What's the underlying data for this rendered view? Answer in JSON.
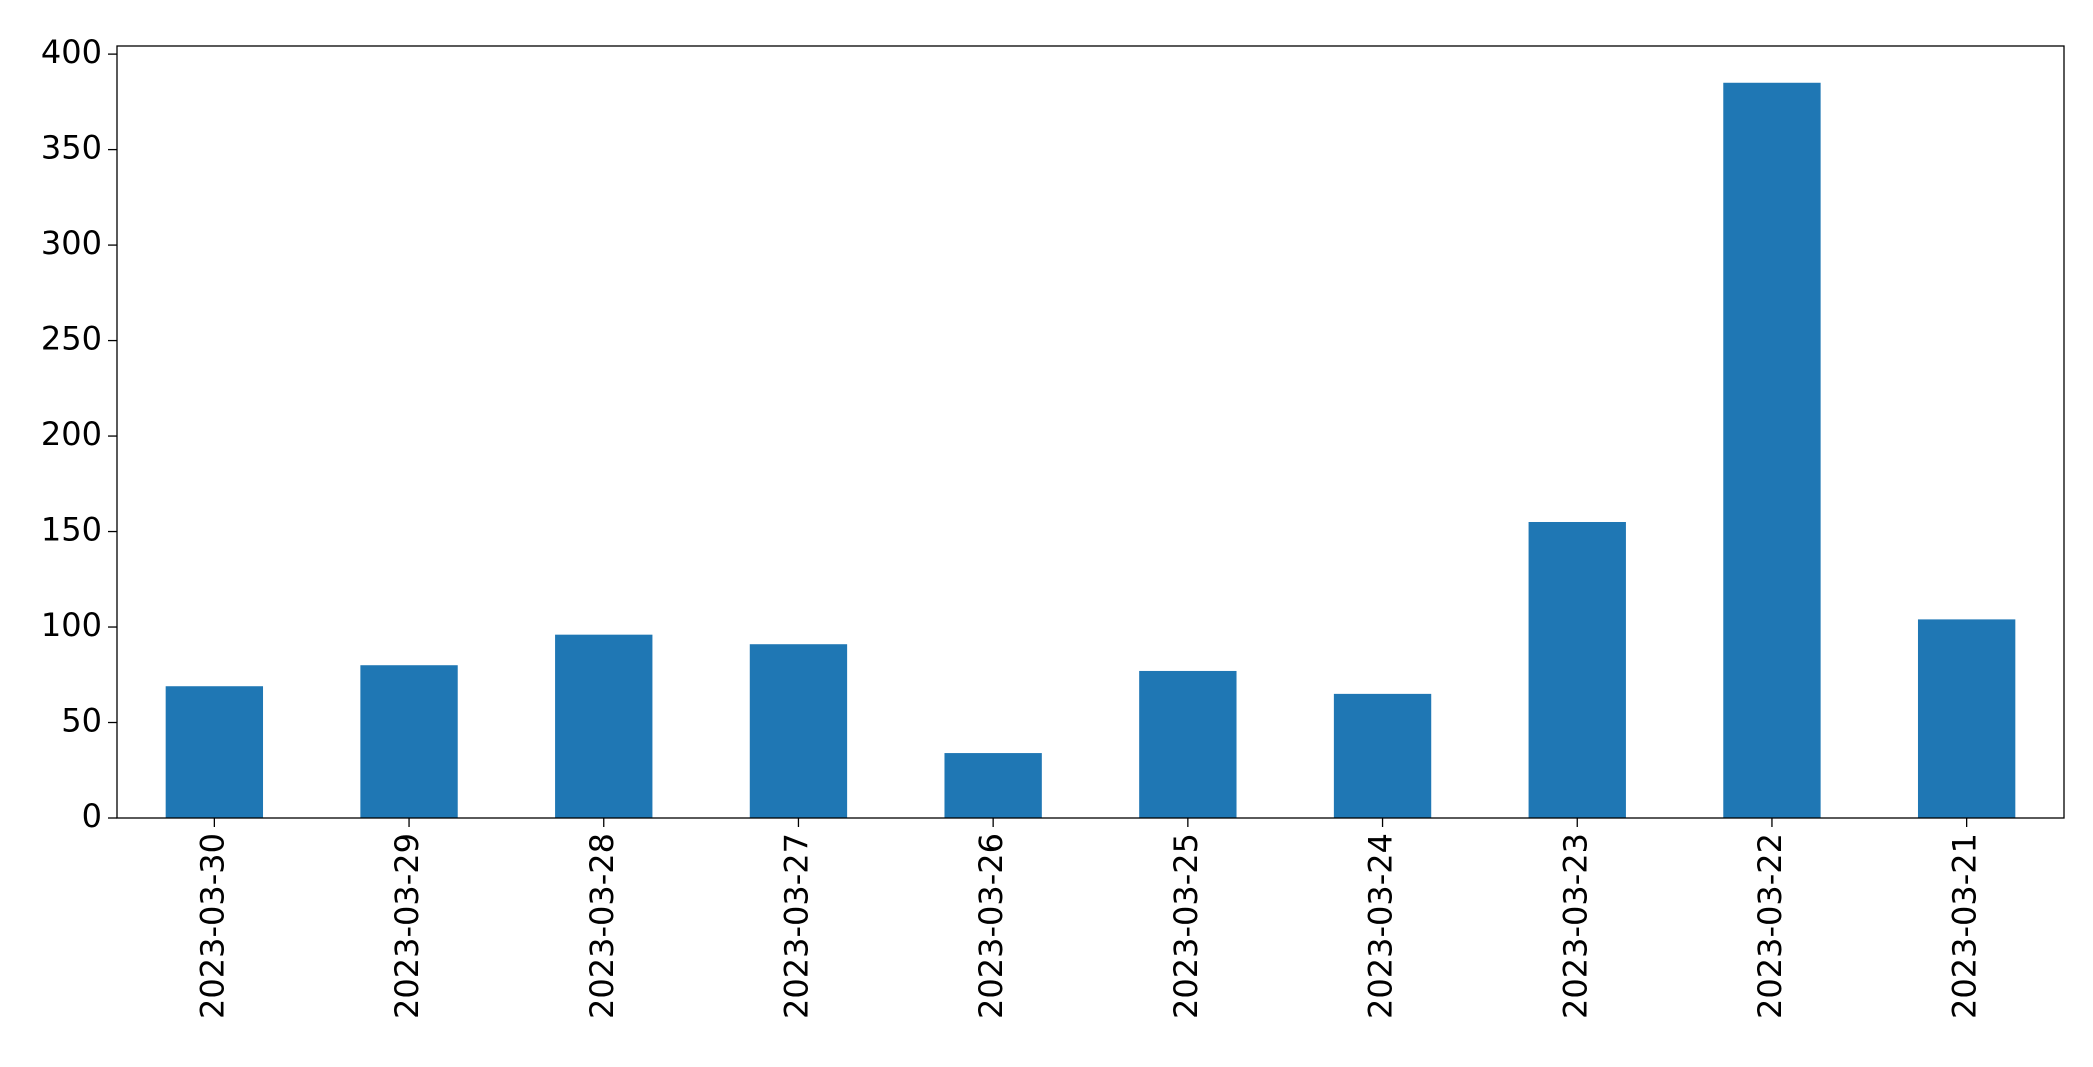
{
  "chart_data": {
    "type": "bar",
    "categories": [
      "2023-03-30",
      "2023-03-29",
      "2023-03-28",
      "2023-03-27",
      "2023-03-26",
      "2023-03-25",
      "2023-03-24",
      "2023-03-23",
      "2023-03-22",
      "2023-03-21"
    ],
    "values": [
      69,
      80,
      96,
      91,
      34,
      77,
      65,
      155,
      385,
      104
    ],
    "color": "#1f77b4",
    "ylim": [
      0,
      404.25
    ],
    "yticks": [
      0,
      50,
      100,
      150,
      200,
      250,
      300,
      350,
      400
    ],
    "grid": false
  }
}
